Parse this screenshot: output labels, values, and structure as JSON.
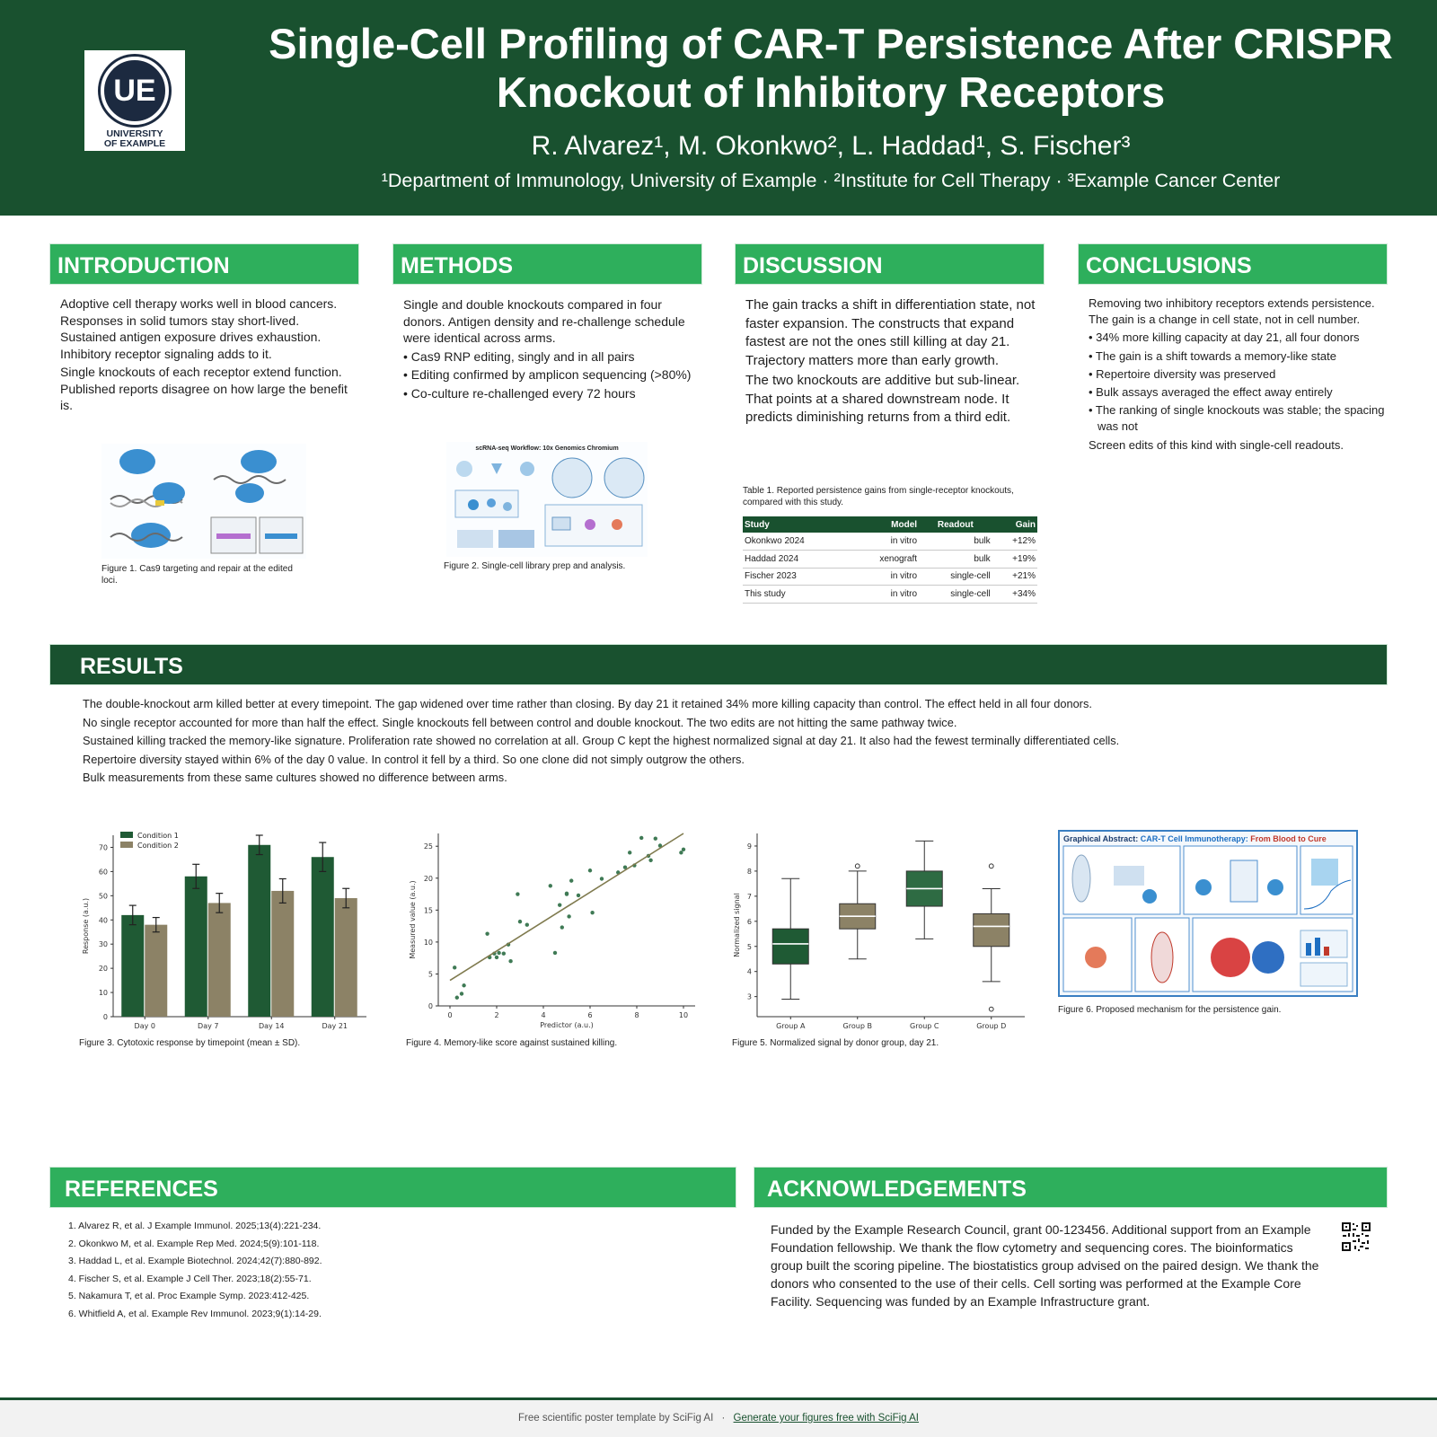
{
  "header": {
    "logo_initials": "UE",
    "logo_line1": "UNIVERSITY",
    "logo_line2": "OF EXAMPLE",
    "title_line1": "Single-Cell Profiling of CAR-T Persistence After CRISPR",
    "title_line2": "Knockout of Inhibitory Receptors",
    "authors": "R. Alvarez¹, M. Okonkwo², L. Haddad¹, S. Fischer³",
    "affiliations": "¹Department of Immunology, University of Example · ²Institute for Cell Therapy · ³Example Cancer Center"
  },
  "introduction": {
    "heading": "INTRODUCTION",
    "para1": "Adoptive cell therapy works well in blood cancers. Responses in solid tumors stay short-lived. Sustained antigen exposure drives exhaustion. Inhibitory receptor signaling adds to it.",
    "para2": "Single knockouts of each receptor extend function. Published reports disagree on how large the benefit is.",
    "figure_caption": "Figure 1. Cas9 targeting and repair at the edited loci."
  },
  "methods": {
    "heading": "METHODS",
    "para1": "Single and double knockouts compared in four donors. Antigen density and re-challenge schedule were identical across arms.",
    "bullets": [
      "• Cas9 RNP editing, singly and in all pairs",
      "• Editing confirmed by amplicon sequencing (>80%)",
      "• Co-culture re-challenged every 72 hours"
    ],
    "figure_title": "scRNA-seq Workflow: 10x Genomics Chromium",
    "figure_caption": "Figure 2. Single-cell library prep and analysis."
  },
  "discussion": {
    "heading": "DISCUSSION",
    "para1": "The gain tracks a shift in differentiation state, not faster expansion. The constructs that expand fastest are not the ones still killing at day 21. Trajectory matters more than early growth.",
    "para2": "The two knockouts are additive but sub-linear. That points at a shared downstream node. It predicts diminishing returns from a third edit.",
    "table_caption": "Table 1. Reported persistence gains from single-receptor knockouts, compared with this study.",
    "table_headers": [
      "Study",
      "Model",
      "Readout",
      "Gain"
    ],
    "table_rows": [
      [
        "Okonkwo 2024",
        "in vitro",
        "bulk",
        "+12%"
      ],
      [
        "Haddad 2024",
        "xenograft",
        "bulk",
        "+19%"
      ],
      [
        "Fischer 2023",
        "in vitro",
        "single-cell",
        "+21%"
      ],
      [
        "This study",
        "in vitro",
        "single-cell",
        "+34%"
      ]
    ]
  },
  "conclusions": {
    "heading": "CONCLUSIONS",
    "para1": "Removing two inhibitory receptors extends persistence. The gain is a change in cell state, not in cell number.",
    "bullets": [
      "• 34% more killing capacity at day 21, all four donors",
      "• The gain is a shift towards a memory-like state",
      "• Repertoire diversity was preserved",
      "• Bulk assays averaged the effect away entirely",
      "• The ranking of single knockouts was stable; the spacing was not"
    ],
    "para2": "Screen edits of this kind with single-cell readouts."
  },
  "results": {
    "heading": "RESULTS",
    "lines": [
      "The double-knockout arm killed better at every timepoint. The gap widened over time rather than closing. By day 21 it retained 34% more killing capacity than control. The effect held in all four donors.",
      "No single receptor accounted for more than half the effect. Single knockouts fell between control and double knockout. The two edits are not hitting the same pathway twice.",
      "Sustained killing tracked the memory-like signature. Proliferation rate showed no correlation at all. Group C kept the highest normalized signal at day 21. It also had the fewest terminally differentiated cells.",
      "Repertoire diversity stayed within 6% of the day 0 value. In control it fell by a third. So one clone did not simply outgrow the others.",
      "Bulk measurements from these same cultures showed no difference between arms."
    ],
    "fig3_caption": "Figure 3. Cytotoxic response by timepoint (mean ± SD).",
    "fig4_caption": "Figure 4. Memory-like score against sustained killing.",
    "fig5_caption": "Figure 5. Normalized signal by donor group, day 21.",
    "fig6_caption": "Figure 6. Proposed mechanism for the persistence gain.",
    "fig6_title_a": "Graphical Abstract: ",
    "fig6_title_b": "CAR-T Cell Immunotherapy: ",
    "fig6_title_c": "From Blood to Cure"
  },
  "chart_data": [
    {
      "type": "bar",
      "categories": [
        "Day 0",
        "Day 7",
        "Day 14",
        "Day 21"
      ],
      "series": [
        {
          "name": "Condition 1",
          "values": [
            42,
            58,
            71,
            66
          ],
          "errors": [
            4,
            5,
            4,
            6
          ],
          "color": "#1f5a34"
        },
        {
          "name": "Condition 2",
          "values": [
            38,
            47,
            52,
            49
          ],
          "errors": [
            3,
            4,
            5,
            4
          ],
          "color": "#8c8266"
        }
      ],
      "xlabel": "",
      "ylabel": "Response (a.u.)",
      "ylim": [
        0,
        75
      ],
      "yticks": [
        0,
        10,
        20,
        30,
        40,
        50,
        60,
        70
      ],
      "legend": "top-left"
    },
    {
      "type": "scatter",
      "x": [
        0.2,
        0.3,
        0.6,
        0.5,
        1.6,
        1.7,
        1.9,
        2.0,
        2.1,
        2.3,
        2.5,
        2.6,
        3.0,
        2.9,
        3.3,
        4.3,
        4.5,
        4.7,
        4.8,
        5.0,
        5.1,
        5.2,
        5.5,
        5.0,
        6.0,
        6.1,
        6.5,
        7.2,
        7.5,
        7.7,
        7.9,
        8.2,
        8.5,
        8.8,
        8.6,
        9.0,
        9.9,
        10.0
      ],
      "y": [
        6.0,
        1.3,
        3.2,
        1.9,
        11.3,
        7.6,
        8.2,
        7.6,
        8.3,
        8.2,
        9.6,
        7.0,
        13.2,
        17.5,
        12.7,
        18.8,
        8.3,
        15.8,
        12.3,
        17.6,
        14.0,
        19.6,
        17.3,
        17.5,
        21.2,
        14.6,
        19.9,
        20.9,
        21.7,
        24.0,
        22.0,
        26.3,
        23.5,
        26.2,
        22.8,
        25.1,
        24.0,
        24.5
      ],
      "trend": {
        "x": [
          0,
          10
        ],
        "y": [
          4,
          27
        ]
      },
      "xlabel": "Predictor (a.u.)",
      "ylabel": "Measured value (a.u.)",
      "xlim": [
        -0.5,
        10.5
      ],
      "ylim": [
        0,
        27
      ],
      "xticks": [
        0,
        2,
        4,
        6,
        8,
        10
      ],
      "yticks": [
        0,
        5,
        10,
        15,
        20,
        25
      ]
    },
    {
      "type": "box",
      "categories": [
        "Group A",
        "Group B",
        "Group C",
        "Group D"
      ],
      "boxes": [
        {
          "whislo": 2.9,
          "q1": 4.3,
          "med": 5.1,
          "q3": 5.7,
          "whishi": 7.7,
          "fliers": [],
          "color": "#1f5a34"
        },
        {
          "whislo": 4.5,
          "q1": 5.7,
          "med": 6.2,
          "q3": 6.7,
          "whishi": 8.0,
          "fliers": [
            8.2
          ],
          "color": "#8c8266"
        },
        {
          "whislo": 5.3,
          "q1": 6.6,
          "med": 7.3,
          "q3": 8.0,
          "whishi": 9.2,
          "fliers": [],
          "color": "#2e6b43"
        },
        {
          "whislo": 3.6,
          "q1": 5.0,
          "med": 5.8,
          "q3": 6.3,
          "whishi": 7.3,
          "fliers": [
            8.2,
            2.5
          ],
          "color": "#8c8266"
        }
      ],
      "ylabel": "Normalized signal",
      "ylim": [
        2.2,
        9.5
      ],
      "yticks": [
        3,
        4,
        5,
        6,
        7,
        8,
        9
      ]
    }
  ],
  "references": {
    "heading": "REFERENCES",
    "items": [
      "1. Alvarez R, et al. J Example Immunol. 2025;13(4):221-234.",
      "2. Okonkwo M, et al. Example Rep Med. 2024;5(9):101-118.",
      "3. Haddad L, et al. Example Biotechnol. 2024;42(7):880-892.",
      "4. Fischer S, et al. Example J Cell Ther. 2023;18(2):55-71.",
      "5. Nakamura T, et al. Proc Example Symp. 2023:412-425.",
      "6. Whitfield A, et al. Example Rev Immunol. 2023;9(1):14-29."
    ]
  },
  "acknowledgements": {
    "heading": "ACKNOWLEDGEMENTS",
    "text": "Funded by the Example Research Council, grant 00-123456. Additional support from an Example Foundation fellowship. We thank the flow cytometry and sequencing cores. The bioinformatics group built the scoring pipeline. The biostatistics group advised on the paired design. We thank the donors who consented to the use of their cells. Cell sorting was performed at the Example Core Facility. Sequencing was funded by an Example Infrastructure grant."
  },
  "footer": {
    "text": "Free scientific poster template by SciFig AI",
    "separator": "·",
    "link": "Generate your figures free with SciFig AI"
  },
  "colors": {
    "header_green": "#19512f",
    "section_green": "#2eaf5c",
    "condition1": "#1f5a34",
    "condition2": "#8c8266"
  }
}
